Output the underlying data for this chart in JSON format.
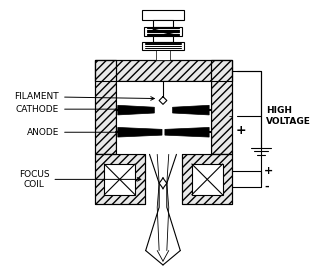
{
  "bg_color": "#ffffff",
  "line_color": "#000000",
  "labels": {
    "filament": "FILAMENT",
    "cathode": "CATHODE",
    "anode": "ANODE",
    "focus_coil": "FOCUS\nCOIL",
    "high_voltage": "HIGH\nVOLTAGE",
    "plus_top": "+",
    "minus_top": "-",
    "plus_bottom": "+",
    "minus_bottom": "-"
  },
  "figsize": [
    3.2,
    2.77
  ],
  "dpi": 100
}
